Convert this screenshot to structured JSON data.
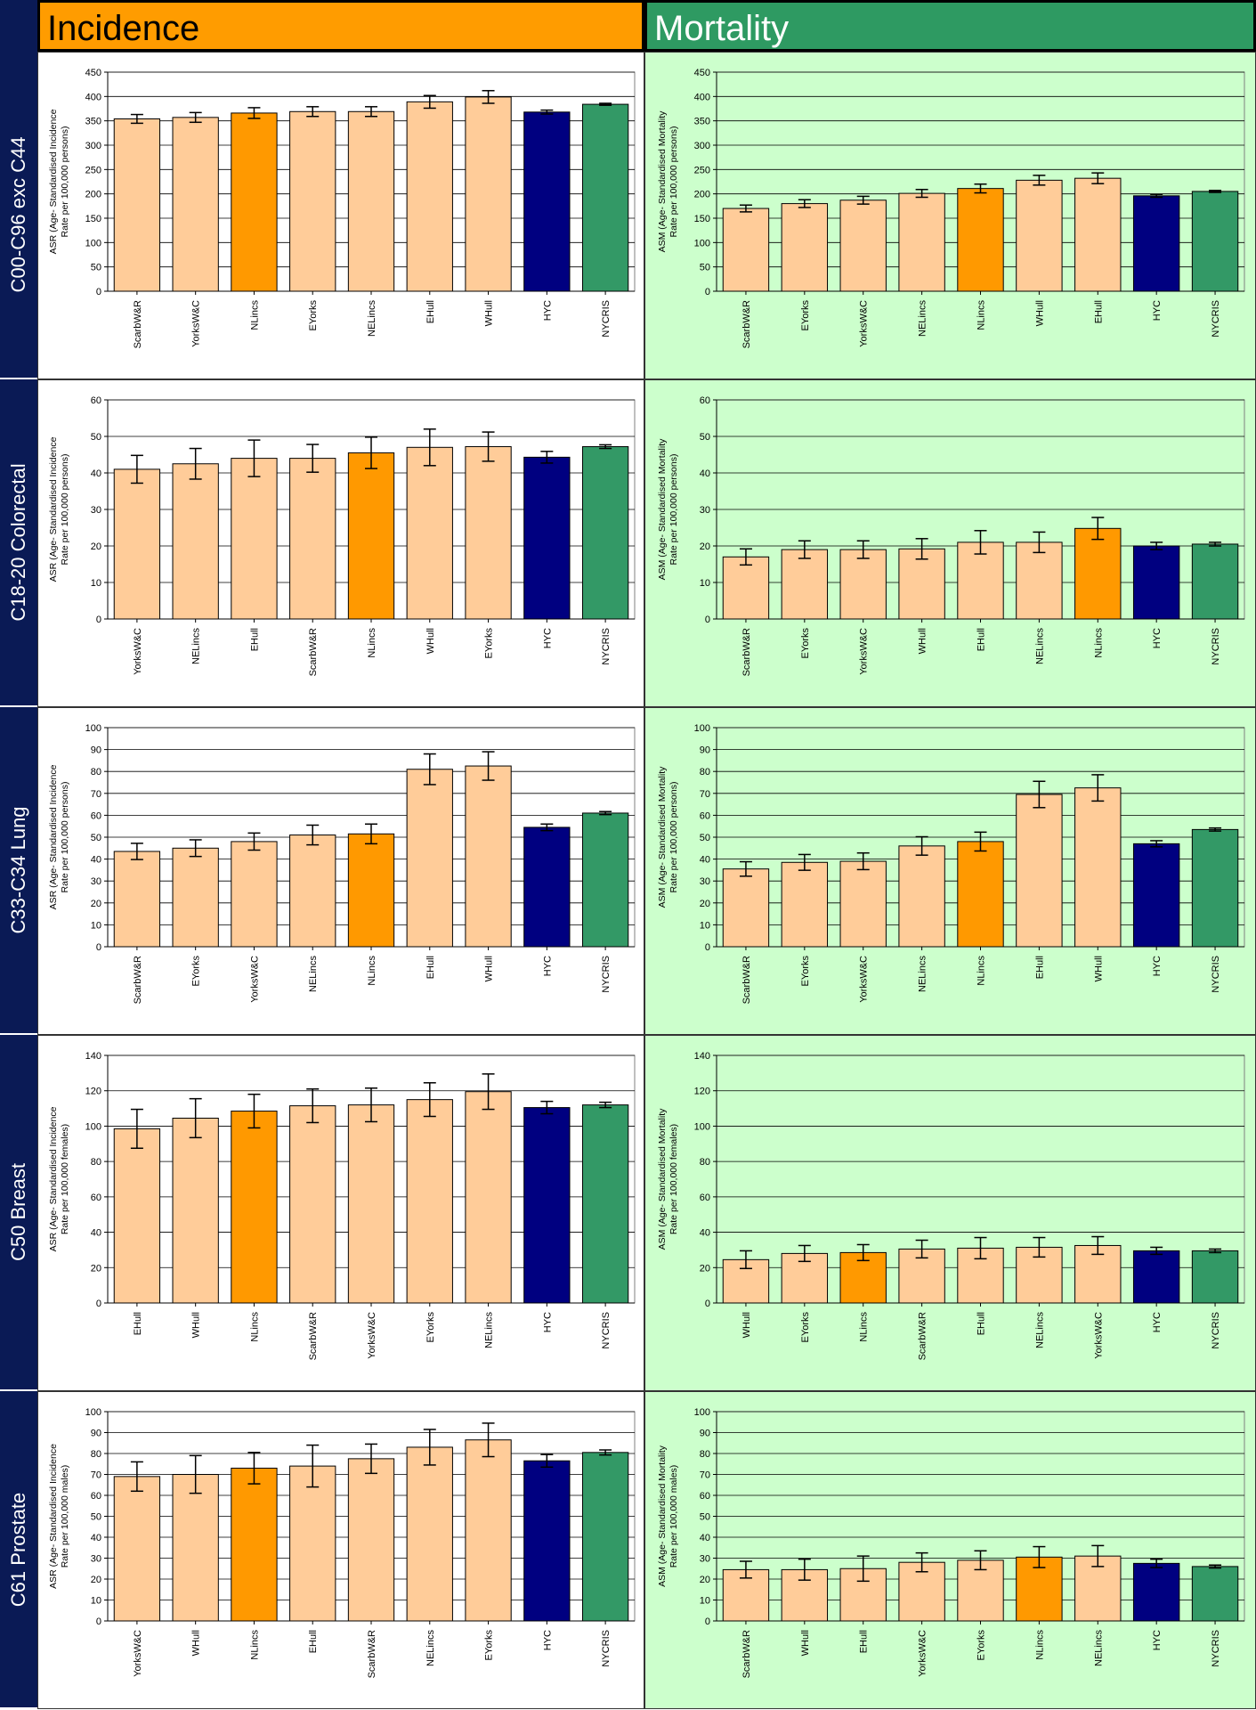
{
  "headers": {
    "incidence": "Incidence",
    "mortality": "Mortality"
  },
  "rows": [
    {
      "label": "C00-C96 exc C44"
    },
    {
      "label": "C18-20 Colorectal"
    },
    {
      "label": "C33-C34 Lung"
    },
    {
      "label": "C50 Breast"
    },
    {
      "label": "C61 Prostate"
    }
  ],
  "colors": {
    "local": "#ffcc99",
    "nlincs": "#ff9900",
    "hyc": "#000080",
    "nycris": "#339966",
    "mortality_bg": "#ccffcc"
  },
  "chart_data": [
    {
      "type": "bar",
      "panel": "incidence",
      "row": 0,
      "ylim": [
        0,
        450
      ],
      "ystep": 50,
      "ylabel": [
        "ASR (Age- Standardised Incidence",
        "Rate per 100,000 persons)"
      ],
      "categories": [
        "ScarbW&R",
        "YorksW&C",
        "NLincs",
        "EYorks",
        "NELincs",
        "EHull",
        "WHull",
        "HYC",
        "NYCRIS"
      ],
      "values": [
        354,
        357,
        366,
        369,
        369,
        389,
        399,
        368,
        384
      ],
      "errors": [
        9,
        10,
        11,
        10,
        10,
        13,
        13,
        4,
        2
      ]
    },
    {
      "type": "bar",
      "panel": "mortality",
      "row": 0,
      "ylim": [
        0,
        450
      ],
      "ystep": 50,
      "ylabel": [
        "ASM (Age- Standardised Mortality",
        "Rate per 100,000 persons)"
      ],
      "categories": [
        "ScarbW&R",
        "EYorks",
        "YorksW&C",
        "NELincs",
        "NLincs",
        "WHull",
        "EHull",
        "HYC",
        "NYCRIS"
      ],
      "values": [
        170,
        180,
        187,
        201,
        211,
        228,
        232,
        196,
        205
      ],
      "errors": [
        7,
        8,
        8,
        8,
        9,
        10,
        11,
        3,
        2
      ]
    },
    {
      "type": "bar",
      "panel": "incidence",
      "row": 1,
      "ylim": [
        0,
        60
      ],
      "ystep": 10,
      "ylabel": [
        "ASR (Age- Standardised Incidence",
        "Rate per 100,000 persons)"
      ],
      "categories": [
        "YorksW&C",
        "NELincs",
        "EHull",
        "ScarbW&R",
        "NLincs",
        "WHull",
        "EYorks",
        "HYC",
        "NYCRIS"
      ],
      "values": [
        41,
        42.5,
        44,
        44,
        45.5,
        47,
        47.2,
        44.3,
        47.2
      ],
      "errors": [
        3.8,
        4.2,
        5,
        3.8,
        4.3,
        5,
        4,
        1.6,
        0.5
      ]
    },
    {
      "type": "bar",
      "panel": "mortality",
      "row": 1,
      "ylim": [
        0,
        60
      ],
      "ystep": 10,
      "ylabel": [
        "ASM (Age- Standardised Mortality",
        "Rate per 100,000 persons)"
      ],
      "categories": [
        "ScarbW&R",
        "EYorks",
        "YorksW&C",
        "WHull",
        "EHull",
        "NELincs",
        "NLincs",
        "HYC",
        "NYCRIS"
      ],
      "values": [
        17,
        19,
        19,
        19.2,
        21,
        21,
        24.8,
        20,
        20.5
      ],
      "errors": [
        2.2,
        2.4,
        2.4,
        2.8,
        3.2,
        2.8,
        3,
        1,
        0.5
      ]
    },
    {
      "type": "bar",
      "panel": "incidence",
      "row": 2,
      "ylim": [
        0,
        100
      ],
      "ystep": 10,
      "ylabel": [
        "ASR (Age- Standardised Incidence",
        "Rate per 100,000 persons)"
      ],
      "categories": [
        "ScarbW&R",
        "EYorks",
        "YorksW&C",
        "NELincs",
        "NLincs",
        "EHull",
        "WHull",
        "HYC",
        "NYCRIS"
      ],
      "values": [
        43.5,
        45,
        48,
        51,
        51.5,
        81,
        82.5,
        54.5,
        61
      ],
      "errors": [
        3.7,
        3.8,
        3.9,
        4.5,
        4.5,
        7,
        6.5,
        1.5,
        0.7
      ]
    },
    {
      "type": "bar",
      "panel": "mortality",
      "row": 2,
      "ylim": [
        0,
        100
      ],
      "ystep": 10,
      "ylabel": [
        "ASM (Age- Standardised Mortality",
        "Rate per 100,000 persons)"
      ],
      "categories": [
        "ScarbW&R",
        "EYorks",
        "YorksW&C",
        "NELincs",
        "NLincs",
        "EHull",
        "WHull",
        "HYC",
        "NYCRIS"
      ],
      "values": [
        35.5,
        38.5,
        39,
        46,
        48,
        69.5,
        72.5,
        47,
        53.5
      ],
      "errors": [
        3.3,
        3.6,
        3.8,
        4.2,
        4.3,
        6,
        6,
        1.4,
        0.7
      ]
    },
    {
      "type": "bar",
      "panel": "incidence",
      "row": 3,
      "ylim": [
        0,
        140
      ],
      "ystep": 20,
      "ylabel": [
        "ASR (Age- Standardised Incidence",
        "Rate per 100,000 females)"
      ],
      "categories": [
        "EHull",
        "WHull",
        "NLincs",
        "ScarbW&R",
        "YorksW&C",
        "EYorks",
        "NELincs",
        "HYC",
        "NYCRIS"
      ],
      "values": [
        98.5,
        104.5,
        108.5,
        111.5,
        112,
        115,
        119.5,
        110.5,
        112
      ],
      "errors": [
        11,
        11,
        9.5,
        9.5,
        9.5,
        9.5,
        10,
        3.5,
        1.5
      ]
    },
    {
      "type": "bar",
      "panel": "mortality",
      "row": 3,
      "ylim": [
        0,
        140
      ],
      "ystep": 20,
      "ylabel": [
        "ASM (Age- Standardised Mortality",
        "Rate per 100,000 females)"
      ],
      "categories": [
        "WHull",
        "EYorks",
        "NLincs",
        "ScarbW&R",
        "EHull",
        "NELincs",
        "YorksW&C",
        "HYC",
        "NYCRIS"
      ],
      "values": [
        24.5,
        28,
        28.5,
        30.5,
        31,
        31.5,
        32.5,
        29.5,
        29.5
      ],
      "errors": [
        5,
        4.5,
        4.5,
        5,
        6,
        5.5,
        5,
        2,
        1
      ]
    },
    {
      "type": "bar",
      "panel": "incidence",
      "row": 4,
      "ylim": [
        0,
        100
      ],
      "ystep": 10,
      "ylabel": [
        "ASR (Age- Standardised Incidence",
        "Rate per 100,000 males)"
      ],
      "categories": [
        "YorksW&C",
        "WHull",
        "NLincs",
        "EHull",
        "ScarbW&R",
        "NELincs",
        "EYorks",
        "HYC",
        "NYCRIS"
      ],
      "values": [
        69,
        70,
        73,
        74,
        77.5,
        83,
        86.5,
        76.5,
        80.5
      ],
      "errors": [
        7,
        9,
        7.5,
        10,
        7,
        8.5,
        8,
        3,
        1.2
      ]
    },
    {
      "type": "bar",
      "panel": "mortality",
      "row": 4,
      "ylim": [
        0,
        100
      ],
      "ystep": 10,
      "ylabel": [
        "ASM (Age- Standardised Mortality",
        "Rate per 100,000 males)"
      ],
      "categories": [
        "ScarbW&R",
        "WHull",
        "EHull",
        "YorksW&C",
        "EYorks",
        "NLincs",
        "NELincs",
        "HYC",
        "NYCRIS"
      ],
      "values": [
        24.5,
        24.5,
        25,
        28,
        29,
        30.5,
        31,
        27.5,
        26
      ],
      "errors": [
        4,
        5,
        6,
        4.5,
        4.5,
        5,
        5,
        2,
        0.7
      ]
    }
  ]
}
